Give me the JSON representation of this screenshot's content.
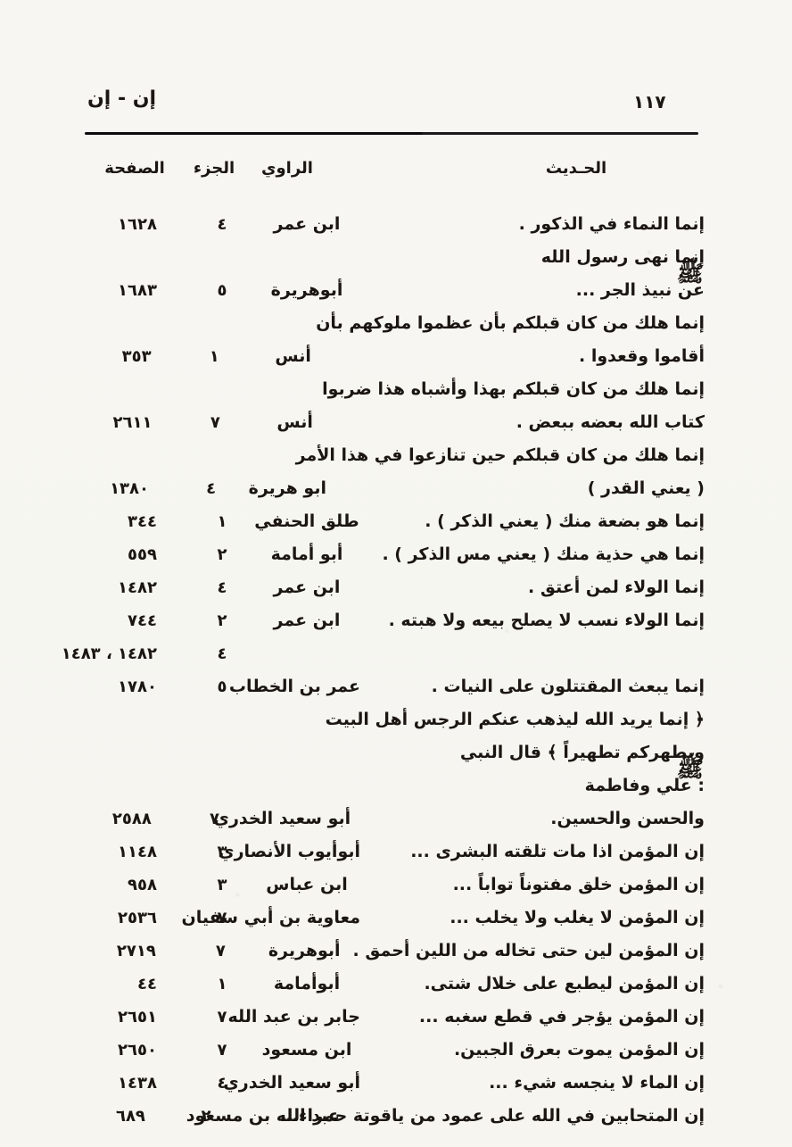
{
  "page": {
    "running_title": "إن - إن",
    "page_number": "١١٧"
  },
  "columns": {
    "page": "الصفحة",
    "volume": "الجزء",
    "narrator": "الراوي",
    "hadith": "الحـديث"
  },
  "honorific": "ﷺ",
  "colors": {
    "paper": "#f7f6f2",
    "ink": "#1b1612"
  },
  "entries": [
    {
      "hadith_lines": [
        "إنما النماء في الذكور ."
      ],
      "narrator": "ابن عمر",
      "volume": "٤",
      "page": "١٦٢٨"
    },
    {
      "hadith_lines": [
        "إنما نهى رسول الله ﷺ عن نبيذ الجر ..."
      ],
      "narrator": "أبوهريرة",
      "volume": "٥",
      "page": "١٦٨٣"
    },
    {
      "hadith_lines": [
        "إنما هلك من كان قبلكم بأن عظموا ملوكهم بأن",
        "أقاموا وقعدوا ."
      ],
      "narrator": "أنس",
      "volume": "١",
      "page": "٣٥٣"
    },
    {
      "hadith_lines": [
        "إنما هلك من كان قبلكم بهذا وأشباه هذا ضربوا",
        "كتاب الله بعضه ببعض ."
      ],
      "narrator": "أنس",
      "volume": "٧",
      "page": "٢٦١١"
    },
    {
      "hadith_lines": [
        "إنما هلك من كان قبلكم حين تنازعوا في هذا الأمر",
        "( يعني القدر )"
      ],
      "narrator": "ابو هريرة",
      "volume": "٤",
      "page": "١٣٨٠"
    },
    {
      "hadith_lines": [
        "إنما هو بضعة منك ( يعني الذكر ) ."
      ],
      "narrator": "طلق الحنفي",
      "volume": "١",
      "page": "٣٤٤"
    },
    {
      "hadith_lines": [
        "إنما هي حذية منك ( يعني مس الذكر ) ."
      ],
      "narrator": "أبو أمامة",
      "volume": "٢",
      "page": "٥٥٩"
    },
    {
      "hadith_lines": [
        "إنما الولاء لمن أعتق ."
      ],
      "narrator": "ابن عمر",
      "volume": "٤",
      "page": "١٤٨٢"
    },
    {
      "hadith_lines": [
        "إنما الولاء نسب لا يصلح بيعه ولا هبته ."
      ],
      "narrator": "ابن عمر",
      "volume": "٢",
      "page": "٧٤٤"
    },
    {
      "hadith_lines": [
        ""
      ],
      "narrator": "",
      "volume": "٤",
      "page": "١٤٨٢ ، ١٤٨٣"
    },
    {
      "hadith_lines": [
        "إنما يبعث المقتتلون على النيات ."
      ],
      "narrator": "عمر بن الخطاب",
      "volume": "٥",
      "page": "١٧٨٠"
    },
    {
      "hadith_lines": [
        "﴿ إنما يريد الله ليذهب عنكم الرجس أهل البيت",
        "ويطهركم تطهيراً ﴾ قال النبي ﷺ : علي وفاطمة",
        "والحسن والحسين."
      ],
      "narrator": "أبو سعيد الخدري",
      "volume": "٧",
      "page": "٢٥٨٨"
    },
    {
      "hadith_lines": [
        "إن المؤمن اذا مات تلقته البشرى ..."
      ],
      "narrator": "أبوأيوب الأنصاري",
      "volume": "٣",
      "page": "١١٤٨"
    },
    {
      "hadith_lines": [
        "إن المؤمن خلق مفتوناً تواباً ..."
      ],
      "narrator": "ابن عباس",
      "volume": "٣",
      "page": "٩٥٨"
    },
    {
      "hadith_lines": [
        "إن المؤمن لا يغلب ولا يخلب ..."
      ],
      "narrator": "معاوية بن أبي سفيان",
      "volume": "٧",
      "page": "٢٥٣٦"
    },
    {
      "hadith_lines": [
        "إن المؤمن لين حتى تخاله من اللين أحمق ."
      ],
      "narrator": "أبوهريرة",
      "volume": "٧",
      "page": "٢٧١٩"
    },
    {
      "hadith_lines": [
        "إن المؤمن ليطبع على خلال شتى."
      ],
      "narrator": "أبوأمامة",
      "volume": "١",
      "page": "٤٤"
    },
    {
      "hadith_lines": [
        "إن المؤمن يؤجر في قطع سغبه ..."
      ],
      "narrator": "جابر بن عبد الله",
      "volume": "٧",
      "page": "٢٦٥١"
    },
    {
      "hadith_lines": [
        "إن المؤمن يموت بعرق الجبين."
      ],
      "narrator": "ابن مسعود",
      "volume": "٧",
      "page": "٢٦٥٠"
    },
    {
      "hadith_lines": [
        "إن الماء لا ينجسه شيء ..."
      ],
      "narrator": "أبو سعيد الخدري",
      "volume": "٤",
      "page": "١٤٣٨"
    },
    {
      "hadith_lines": [
        "إن المتحابين في الله على عمود من ياقوتة حمراء..."
      ],
      "narrator": "عبد الله بن مسعود",
      "volume": "٢",
      "page": "٦٨٩"
    }
  ]
}
